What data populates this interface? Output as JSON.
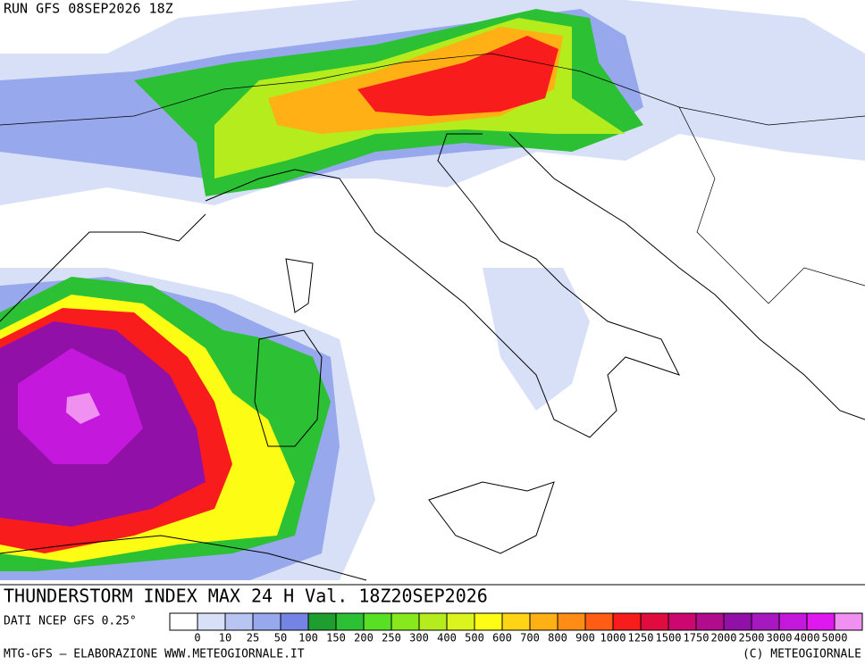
{
  "header": {
    "run": "RUN GFS 08SEP2026 18Z"
  },
  "title": "THUNDERSTORM INDEX MAX 24 H Val. 18Z20SEP2026",
  "source": "DATI NCEP GFS 0.25°",
  "footer": {
    "left": "MTG-GFS – ELABORAZIONE WWW.METEOGIORNALE.IT",
    "right": "(C) METEOGIORNALE"
  },
  "colorbar": {
    "colors": [
      "#ffffff",
      "#d8e0f8",
      "#b8c4f2",
      "#98a8ec",
      "#7484e4",
      "#1e9e2e",
      "#2cc034",
      "#58e024",
      "#88e81e",
      "#b4ec1e",
      "#dcf41e",
      "#fcfc14",
      "#ffd414",
      "#ffb014",
      "#ff8c14",
      "#ff5c14",
      "#f81c1c",
      "#e00c40",
      "#cc0870",
      "#b00c8c",
      "#9010a8",
      "#a818c0",
      "#c418dc",
      "#e018f0",
      "#f090f0"
    ],
    "labels": [
      0,
      10,
      25,
      50,
      100,
      150,
      200,
      250,
      300,
      400,
      500,
      600,
      700,
      800,
      900,
      1000,
      1250,
      1500,
      1750,
      2000,
      2500,
      3000,
      4000,
      5000
    ]
  }
}
